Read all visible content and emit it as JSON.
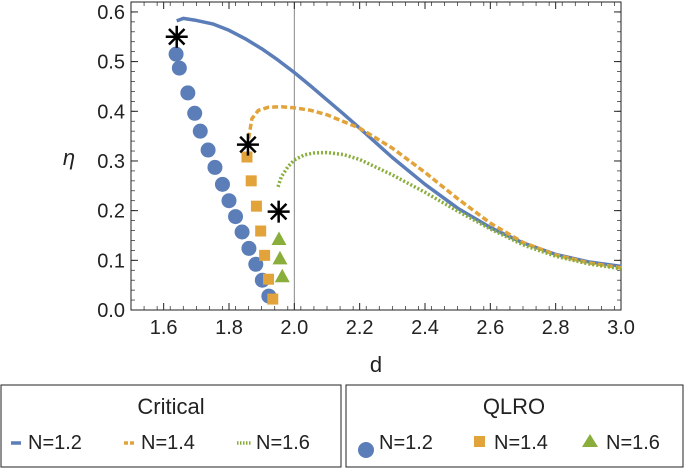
{
  "chart_data": {
    "type": "scatter",
    "xlabel": "d",
    "ylabel": "η",
    "xlim": [
      1.5,
      3.0
    ],
    "ylim": [
      0.0,
      0.62
    ],
    "x_ticks": [
      "1.6",
      "1.8",
      "2.0",
      "2.2",
      "2.4",
      "2.6",
      "2.8",
      "3.0"
    ],
    "y_ticks": [
      "0.0",
      "0.1",
      "0.2",
      "0.3",
      "0.4",
      "0.5",
      "0.6"
    ],
    "reference_line_x": 2.0,
    "colors": {
      "n12": "#5B7DB8",
      "n14": "#E2A33A",
      "n16": "#8AAE3C"
    },
    "critical_series": [
      {
        "name": "N=1.2",
        "style": "solid",
        "points": [
          [
            1.64,
            0.582
          ],
          [
            1.66,
            0.587
          ],
          [
            1.7,
            0.583
          ],
          [
            1.75,
            0.576
          ],
          [
            1.8,
            0.563
          ],
          [
            1.85,
            0.546
          ],
          [
            1.9,
            0.526
          ],
          [
            1.95,
            0.503
          ],
          [
            2.0,
            0.478
          ],
          [
            2.05,
            0.451
          ],
          [
            2.1,
            0.423
          ],
          [
            2.15,
            0.395
          ],
          [
            2.2,
            0.366
          ],
          [
            2.3,
            0.307
          ],
          [
            2.4,
            0.253
          ],
          [
            2.5,
            0.205
          ],
          [
            2.6,
            0.166
          ],
          [
            2.7,
            0.135
          ],
          [
            2.8,
            0.112
          ],
          [
            2.9,
            0.097
          ],
          [
            3.0,
            0.088
          ]
        ]
      },
      {
        "name": "N=1.4",
        "style": "dashed",
        "points": [
          [
            1.86,
            0.345
          ],
          [
            1.87,
            0.385
          ],
          [
            1.89,
            0.402
          ],
          [
            1.92,
            0.408
          ],
          [
            1.96,
            0.409
          ],
          [
            2.0,
            0.407
          ],
          [
            2.05,
            0.402
          ],
          [
            2.1,
            0.393
          ],
          [
            2.2,
            0.366
          ],
          [
            2.3,
            0.326
          ],
          [
            2.4,
            0.277
          ],
          [
            2.5,
            0.224
          ],
          [
            2.6,
            0.175
          ],
          [
            2.7,
            0.136
          ],
          [
            2.8,
            0.111
          ],
          [
            2.9,
            0.095
          ],
          [
            3.0,
            0.085
          ]
        ]
      },
      {
        "name": "N=1.6",
        "style": "dotted",
        "points": [
          [
            1.95,
            0.248
          ],
          [
            1.96,
            0.268
          ],
          [
            1.98,
            0.288
          ],
          [
            2.0,
            0.302
          ],
          [
            2.03,
            0.312
          ],
          [
            2.06,
            0.316
          ],
          [
            2.1,
            0.317
          ],
          [
            2.15,
            0.313
          ],
          [
            2.2,
            0.303
          ],
          [
            2.3,
            0.272
          ],
          [
            2.4,
            0.237
          ],
          [
            2.5,
            0.199
          ],
          [
            2.6,
            0.163
          ],
          [
            2.7,
            0.131
          ],
          [
            2.8,
            0.108
          ],
          [
            2.9,
            0.093
          ],
          [
            3.0,
            0.083
          ]
        ]
      }
    ],
    "qlro_series": [
      {
        "name": "N=1.2",
        "marker": "circle",
        "points": [
          [
            1.638,
            0.515
          ],
          [
            1.648,
            0.487
          ],
          [
            1.674,
            0.437
          ],
          [
            1.695,
            0.396
          ],
          [
            1.712,
            0.36
          ],
          [
            1.736,
            0.322
          ],
          [
            1.757,
            0.287
          ],
          [
            1.78,
            0.253
          ],
          [
            1.8,
            0.22
          ],
          [
            1.82,
            0.188
          ],
          [
            1.84,
            0.157
          ],
          [
            1.861,
            0.124
          ],
          [
            1.882,
            0.092
          ],
          [
            1.902,
            0.06
          ],
          [
            1.922,
            0.028
          ]
        ]
      },
      {
        "name": "N=1.4",
        "marker": "square",
        "points": [
          [
            1.855,
            0.308
          ],
          [
            1.868,
            0.26
          ],
          [
            1.884,
            0.209
          ],
          [
            1.897,
            0.159
          ],
          [
            1.909,
            0.11
          ],
          [
            1.921,
            0.062
          ],
          [
            1.934,
            0.022
          ]
        ]
      },
      {
        "name": "N=1.6",
        "marker": "triangle",
        "points": [
          [
            1.953,
            0.142
          ],
          [
            1.956,
            0.103
          ],
          [
            1.963,
            0.067
          ]
        ]
      }
    ],
    "star_markers": [
      [
        1.64,
        0.55
      ],
      [
        1.858,
        0.333
      ],
      [
        1.952,
        0.198
      ]
    ],
    "legends": {
      "critical": {
        "title": "Critical",
        "entries": [
          "N=1.2",
          "N=1.4",
          "N=1.6"
        ]
      },
      "qlro": {
        "title": "QLRO",
        "entries": [
          "N=1.2",
          "N=1.4",
          "N=1.6"
        ]
      }
    }
  }
}
